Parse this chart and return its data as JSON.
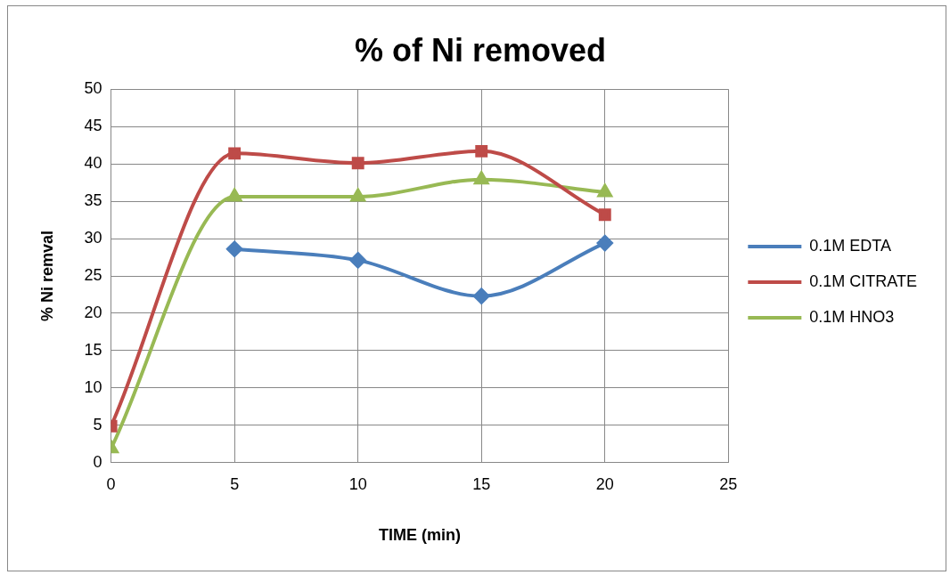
{
  "chart_data": {
    "type": "line",
    "title": "% of Ni removed",
    "xlabel": "TIME (min)",
    "ylabel": "% Ni remval",
    "x": [
      0,
      5,
      10,
      15,
      20
    ],
    "series": [
      {
        "name": "0.1M EDTA",
        "color": "#4a7ebb",
        "marker": "diamond",
        "values": [
          null,
          28.6,
          27.1,
          22.3,
          29.4
        ]
      },
      {
        "name": "0.1M CITRATE",
        "color": "#be4b48",
        "marker": "square",
        "values": [
          4.9,
          41.4,
          40.1,
          41.7,
          33.2
        ]
      },
      {
        "name": "0.1M HNO3",
        "color": "#98b954",
        "marker": "triangle",
        "values": [
          1.9,
          35.6,
          35.6,
          37.9,
          36.2
        ]
      }
    ],
    "xlim": [
      0,
      25
    ],
    "xticks": [
      0,
      5,
      10,
      15,
      20,
      25
    ],
    "ylim": [
      0,
      50
    ],
    "yticks": [
      0,
      5,
      10,
      15,
      20,
      25,
      30,
      35,
      40,
      45,
      50
    ],
    "grid": true,
    "legend": "right"
  }
}
